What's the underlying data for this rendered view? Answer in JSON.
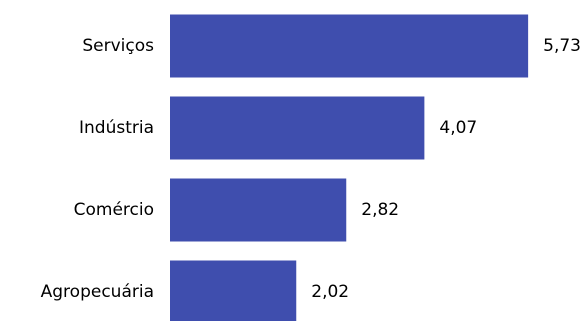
{
  "chart_data": {
    "type": "bar",
    "orientation": "horizontal",
    "categories": [
      "Serviços",
      "Indústria",
      "Comércio",
      "Agropecuária"
    ],
    "values": [
      5.73,
      4.07,
      2.82,
      2.02
    ],
    "value_labels": [
      "5,73",
      "4,07",
      "2,82",
      "2,02"
    ],
    "title": "",
    "xlabel": "",
    "ylabel": "",
    "xlim": [
      0,
      6
    ],
    "grid": false,
    "legend": "none",
    "bar_color": "#3f4eae"
  }
}
